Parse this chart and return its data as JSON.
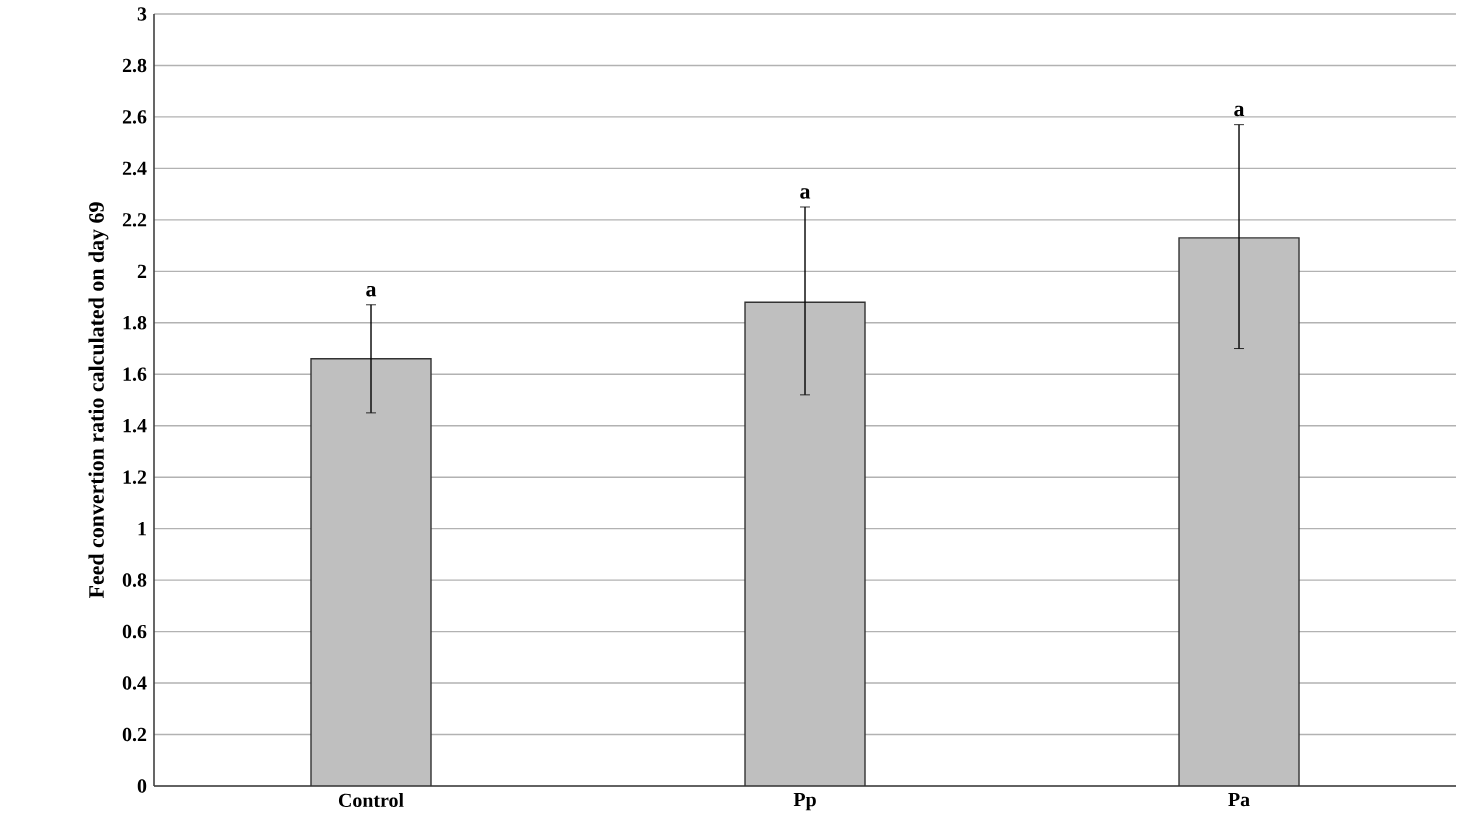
{
  "chart_data": {
    "type": "bar",
    "ylabel": "Feed convertion ratio calculated on day 69",
    "categories": [
      "Control",
      "Pp",
      "Pa"
    ],
    "values": [
      1.66,
      1.88,
      2.13
    ],
    "errors": [
      [
        1.45,
        1.87
      ],
      [
        1.52,
        2.25
      ],
      [
        1.7,
        2.57
      ]
    ],
    "color": "#bfbfbf",
    "ylim": [
      0,
      3
    ],
    "yticks": [
      0,
      0.2,
      0.4,
      0.6,
      0.8,
      1,
      1.2,
      1.4,
      1.6,
      1.8,
      2,
      2.2,
      2.4,
      2.6,
      2.8,
      3
    ],
    "grid": "y",
    "annotations": [
      {
        "text": "a",
        "x": "Control",
        "y": 1.87
      },
      {
        "text": "a",
        "x": "Pp",
        "y": 2.25
      },
      {
        "text": "a",
        "x": "Pa",
        "y": 2.57
      }
    ]
  }
}
